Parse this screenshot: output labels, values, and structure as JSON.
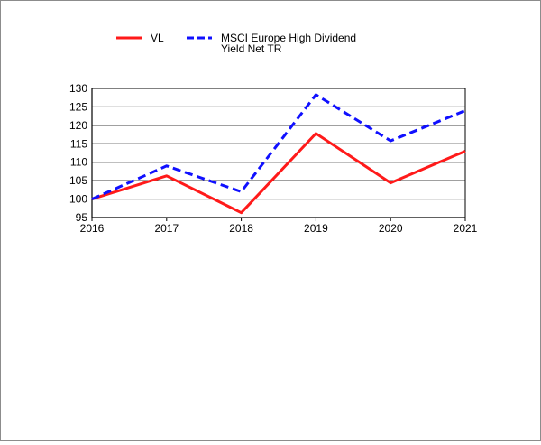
{
  "chart_data": {
    "type": "line",
    "title": "",
    "xlabel": "",
    "ylabel": "",
    "x": [
      "2016",
      "2017",
      "2018",
      "2019",
      "2020",
      "2021"
    ],
    "ylim": [
      95,
      130
    ],
    "yticks": [
      95,
      100,
      105,
      110,
      115,
      120,
      125,
      130
    ],
    "grid": "horizontal",
    "legend_position": "top",
    "series": [
      {
        "name": "VL",
        "legend_lines": [
          "VL"
        ],
        "color": "#ff1a1a",
        "dash": "solid",
        "values": [
          100,
          106.3,
          96.3,
          117.8,
          104.4,
          113.0
        ]
      },
      {
        "name": "MSCI Europe High Dividend Yield Net TR",
        "legend_lines": [
          "MSCI Europe High Dividend",
          "Yield Net TR"
        ],
        "color": "#1010ff",
        "dash": "dashed",
        "values": [
          100,
          109.0,
          102.0,
          128.3,
          115.8,
          124.0
        ]
      }
    ]
  }
}
